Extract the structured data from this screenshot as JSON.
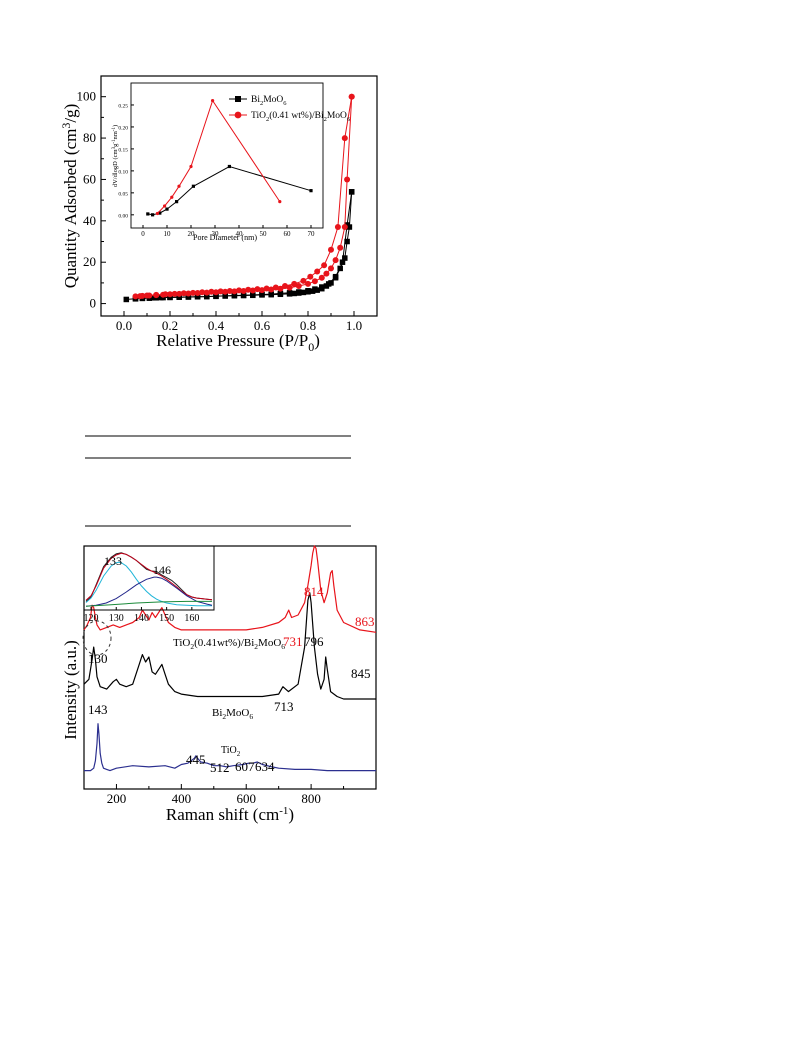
{
  "chart_data": [
    {
      "type": "scatter",
      "xlabel": "Relative Pressure (P/P",
      "xlabel_sub": "0",
      "xlabel_end": ")",
      "ylabel": "Quantity Adsorbed (cm",
      "ylabel_sup": "3",
      "ylabel_end": "/g)",
      "xlim": [
        -0.1,
        1.1
      ],
      "ylim": [
        -6,
        110
      ],
      "xticks": [
        "0.0",
        "0.2",
        "0.4",
        "0.6",
        "0.8",
        "1.0"
      ],
      "yticks": [
        "0",
        "20",
        "40",
        "60",
        "80",
        "100"
      ],
      "grid": false,
      "series": [
        {
          "name": "Bi2MoO6",
          "color": "#000000",
          "marker": "square",
          "adsorption": {
            "x": [
              0.01,
              0.05,
              0.08,
              0.11,
              0.14,
              0.17,
              0.2,
              0.24,
              0.28,
              0.32,
              0.36,
              0.4,
              0.44,
              0.48,
              0.52,
              0.56,
              0.6,
              0.64,
              0.68,
              0.72,
              0.74,
              0.76,
              0.78,
              0.8,
              0.82,
              0.84,
              0.86,
              0.88,
              0.9,
              0.92,
              0.94,
              0.96,
              0.97,
              0.98,
              0.99
            ],
            "y": [
              2,
              2.3,
              2.5,
              2.6,
              2.8,
              2.9,
              3,
              3.1,
              3.2,
              3.3,
              3.4,
              3.6,
              3.7,
              3.8,
              3.9,
              4,
              4.2,
              4.3,
              4.5,
              4.7,
              4.9,
              5.1,
              5.4,
              5.7,
              6,
              6.5,
              7.2,
              8.5,
              10,
              12.5,
              17,
              22,
              30,
              37,
              54
            ]
          },
          "desorption": {
            "x": [
              0.99,
              0.97,
              0.95,
              0.92,
              0.89,
              0.86,
              0.83,
              0.8,
              0.76,
              0.72,
              0.68,
              0.64,
              0.6,
              0.56,
              0.52,
              0.48,
              0.44,
              0.4,
              0.36,
              0.32,
              0.28,
              0.24,
              0.2,
              0.16,
              0.12,
              0.08,
              0.05
            ],
            "y": [
              54,
              38,
              20,
              13,
              9.5,
              8,
              7,
              6.2,
              5.6,
              5.2,
              4.9,
              4.6,
              4.4,
              4.2,
              4,
              3.9,
              3.7,
              3.5,
              3.4,
              3.3,
              3.2,
              3.1,
              3,
              2.9,
              2.8,
              2.6,
              2.4
            ]
          }
        },
        {
          "name": "TiO2(0.41 wt%)/Bi2MoO6",
          "color": "#e8141b",
          "marker": "circle",
          "adsorption": {
            "x": [
              0.05,
              0.08,
              0.11,
              0.14,
              0.17,
              0.2,
              0.24,
              0.28,
              0.32,
              0.36,
              0.4,
              0.44,
              0.48,
              0.52,
              0.56,
              0.6,
              0.64,
              0.68,
              0.72,
              0.76,
              0.8,
              0.83,
              0.86,
              0.88,
              0.9,
              0.92,
              0.94,
              0.96,
              0.97,
              0.99
            ],
            "y": [
              3.5,
              3.7,
              3.9,
              4.1,
              4.3,
              4.5,
              4.7,
              4.9,
              5.1,
              5.3,
              5.5,
              5.7,
              5.9,
              6.1,
              6.3,
              6.5,
              6.8,
              7.2,
              7.7,
              8.5,
              9.5,
              10.8,
              12.5,
              14.5,
              17,
              21,
              27,
              37,
              60,
              100
            ]
          },
          "desorption": {
            "x": [
              0.99,
              0.96,
              0.93,
              0.9,
              0.87,
              0.84,
              0.81,
              0.78,
              0.74,
              0.7,
              0.66,
              0.62,
              0.58,
              0.54,
              0.5,
              0.46,
              0.42,
              0.38,
              0.34,
              0.3,
              0.26,
              0.22,
              0.18,
              0.14,
              0.1,
              0.07
            ],
            "y": [
              100,
              80,
              37,
              26,
              18.5,
              15.5,
              13,
              11,
              9.5,
              8.5,
              7.8,
              7.3,
              7,
              6.7,
              6.4,
              6.1,
              5.9,
              5.7,
              5.5,
              5.2,
              5,
              4.7,
              4.5,
              4.2,
              3.9,
              3.6
            ]
          }
        }
      ],
      "inset": {
        "type": "line",
        "xlabel": "Pore Diameter (nm)",
        "ylabel": "dV/dlogD (cm",
        "ylabel_sup1": "3",
        "ylabel_mid": "g",
        "ylabel_sup2": "-1",
        "ylabel_mid2": "nm",
        "ylabel_sup3": "-1",
        "ylabel_end": ")",
        "xlim": [
          -5,
          75
        ],
        "ylim": [
          -0.03,
          0.3
        ],
        "xticks": [
          "0",
          "10",
          "20",
          "30",
          "40",
          "50",
          "60",
          "70"
        ],
        "yticks": [
          "0.00",
          "0.05",
          "0.10",
          "0.15",
          "0.20",
          "0.25"
        ],
        "series": [
          {
            "name": "Bi",
            "name_sub": "2",
            "name_mid": "MoO",
            "name_sub2": "6",
            "color": "#000000",
            "marker": "square",
            "x": [
              2,
              4,
              7,
              10,
              14,
              21,
              36,
              70
            ],
            "y": [
              0.002,
              0,
              0.004,
              0.013,
              0.03,
              0.065,
              0.11,
              0.055
            ]
          },
          {
            "name": "TiO",
            "name_sub": "2",
            "name_mid": "(0.41 wt%)/Bi",
            "name_sub2": "2",
            "name_end": "MoO",
            "name_sub3": "6",
            "color": "#e8141b",
            "marker": "circle",
            "x": [
              6,
              9,
              12,
              15,
              20,
              29,
              57
            ],
            "y": [
              0.003,
              0.02,
              0.04,
              0.065,
              0.11,
              0.26,
              0.03
            ]
          }
        ]
      }
    },
    {
      "type": "line",
      "xlabel": "Raman shift (cm",
      "xlabel_sup": "-1",
      "xlabel_end": ")",
      "ylabel": "Intensity (a.u.)",
      "xlim": [
        100,
        1000
      ],
      "xticks": [
        "200",
        "400",
        "600",
        "800"
      ],
      "xtick_values": [
        200,
        400,
        600,
        800
      ],
      "grid": false,
      "series": [
        {
          "name": "TiO2(0.41wt%)/Bi2MoO6",
          "color": "#e8141b",
          "x": [
            100,
            110,
            120,
            125,
            130,
            135,
            140,
            150,
            170,
            190,
            210,
            230,
            250,
            270,
            280,
            290,
            300,
            310,
            320,
            340,
            350,
            360,
            380,
            400,
            420,
            450,
            500,
            550,
            600,
            650,
            700,
            720,
            731,
            740,
            760,
            780,
            790,
            800,
            805,
            810,
            815,
            820,
            830,
            840,
            850,
            860,
            865,
            870,
            880,
            900,
            950,
            1000
          ],
          "y": [
            0.62,
            0.64,
            0.67,
            0.72,
            0.71,
            0.67,
            0.64,
            0.62,
            0.63,
            0.64,
            0.63,
            0.64,
            0.65,
            0.67,
            0.7,
            0.68,
            0.66,
            0.69,
            0.67,
            0.71,
            0.68,
            0.65,
            0.63,
            0.62,
            0.62,
            0.62,
            0.62,
            0.62,
            0.62,
            0.63,
            0.65,
            0.67,
            0.7,
            0.67,
            0.68,
            0.73,
            0.8,
            0.88,
            0.93,
            0.96,
            0.95,
            0.9,
            0.78,
            0.73,
            0.77,
            0.85,
            0.86,
            0.8,
            0.7,
            0.65,
            0.62,
            0.61
          ]
        },
        {
          "name": "Bi2MoO6",
          "color": "#000000",
          "x": [
            100,
            115,
            125,
            130,
            135,
            140,
            150,
            170,
            190,
            200,
            210,
            230,
            250,
            270,
            280,
            290,
            300,
            310,
            320,
            340,
            350,
            360,
            380,
            400,
            450,
            500,
            550,
            600,
            650,
            700,
            713,
            730,
            760,
            780,
            790,
            796,
            800,
            810,
            820,
            830,
            840,
            845,
            850,
            860,
            880,
            900,
            950,
            1000
          ],
          "y": [
            0.4,
            0.42,
            0.5,
            0.55,
            0.5,
            0.43,
            0.39,
            0.38,
            0.41,
            0.42,
            0.4,
            0.39,
            0.4,
            0.48,
            0.52,
            0.49,
            0.51,
            0.45,
            0.44,
            0.48,
            0.44,
            0.4,
            0.37,
            0.36,
            0.35,
            0.35,
            0.35,
            0.35,
            0.35,
            0.36,
            0.39,
            0.37,
            0.4,
            0.55,
            0.74,
            0.77,
            0.73,
            0.55,
            0.44,
            0.38,
            0.42,
            0.51,
            0.46,
            0.37,
            0.35,
            0.34,
            0.34,
            0.34
          ]
        },
        {
          "name": "TiO2",
          "color": "#2b2f8f",
          "x": [
            100,
            120,
            130,
            135,
            140,
            143,
            146,
            150,
            155,
            160,
            170,
            180,
            200,
            250,
            300,
            350,
            380,
            400,
            420,
            440,
            445,
            450,
            460,
            480,
            500,
            512,
            520,
            540,
            560,
            590,
            607,
            620,
            634,
            650,
            680,
            700,
            750,
            800,
            850,
            900,
            1000
          ],
          "y": [
            0.05,
            0.05,
            0.06,
            0.09,
            0.16,
            0.24,
            0.2,
            0.12,
            0.08,
            0.06,
            0.055,
            0.05,
            0.06,
            0.07,
            0.065,
            0.07,
            0.06,
            0.075,
            0.08,
            0.1,
            0.11,
            0.1,
            0.085,
            0.08,
            0.07,
            0.07,
            0.07,
            0.065,
            0.07,
            0.075,
            0.08,
            0.08,
            0.085,
            0.075,
            0.065,
            0.06,
            0.055,
            0.055,
            0.05,
            0.05,
            0.05
          ]
        }
      ],
      "series_labels": {
        "composite_a": "TiO",
        "composite_sub_a": "2",
        "composite_b": "(0.41wt%)/Bi",
        "composite_sub_b": "2",
        "composite_c": "MoO",
        "composite_sub_c": "6",
        "bmo_a": "Bi",
        "bmo_sub_a": "2",
        "bmo_b": "MoO",
        "bmo_sub_b": "6",
        "tio2_a": "TiO",
        "tio2_sub": "2"
      },
      "peak_labels": {
        "r814": "814",
        "r863": "863",
        "r731": "731",
        "r796": "796",
        "b130": "130",
        "b845": "845",
        "b713": "713",
        "t143": "143",
        "t445": "445",
        "t512": "512",
        "t607": "607",
        "t634": "634"
      },
      "inset": {
        "type": "line",
        "xlim": [
          118,
          168
        ],
        "xticks": [
          "120",
          "130",
          "140",
          "150",
          "160"
        ],
        "xtick_values": [
          120,
          130,
          140,
          150,
          160
        ],
        "peak_labels": {
          "p133": "133",
          "p146": "146"
        },
        "series": [
          {
            "name": "raw",
            "color": "#222222",
            "x": [
              118,
              120,
              122,
              125,
              128,
              130,
              132,
              134,
              136,
              138,
              140,
              142,
              144,
              146,
              148,
              150,
              152,
              154,
              156,
              158,
              160,
              162,
              164,
              166,
              168
            ],
            "y": [
              0.12,
              0.2,
              0.42,
              0.75,
              0.92,
              0.98,
              1.0,
              0.97,
              0.92,
              0.86,
              0.78,
              0.7,
              0.67,
              0.66,
              0.6,
              0.55,
              0.5,
              0.42,
              0.33,
              0.24,
              0.2,
              0.18,
              0.17,
              0.16,
              0.15
            ]
          },
          {
            "name": "cumulative",
            "color": "#c0001a",
            "x": [
              118,
              120,
              122,
              125,
              128,
              130,
              132,
              134,
              136,
              138,
              140,
              142,
              144,
              146,
              148,
              150,
              152,
              154,
              156,
              158,
              160,
              162,
              164,
              166,
              168
            ],
            "y": [
              0.14,
              0.22,
              0.4,
              0.72,
              0.9,
              0.96,
              0.99,
              0.97,
              0.92,
              0.86,
              0.79,
              0.72,
              0.67,
              0.63,
              0.58,
              0.52,
              0.45,
              0.38,
              0.3,
              0.24,
              0.2,
              0.18,
              0.17,
              0.16,
              0.15
            ]
          },
          {
            "name": "peak1",
            "color": "#1fb5d8",
            "x": [
              118,
              120,
              122,
              125,
              128,
              130,
              131,
              132,
              134,
              136,
              138,
              140,
              142,
              144,
              146,
              148,
              150,
              154,
              158,
              162,
              168
            ],
            "y": [
              0.1,
              0.18,
              0.32,
              0.58,
              0.76,
              0.82,
              0.83,
              0.82,
              0.76,
              0.65,
              0.52,
              0.4,
              0.3,
              0.22,
              0.16,
              0.12,
              0.09,
              0.06,
              0.05,
              0.04,
              0.04
            ]
          },
          {
            "name": "peak2",
            "color": "#22268a",
            "x": [
              118,
              122,
              126,
              130,
              134,
              138,
              142,
              145,
              146,
              148,
              150,
              154,
              158,
              162,
              166,
              168
            ],
            "y": [
              0.03,
              0.05,
              0.09,
              0.17,
              0.29,
              0.42,
              0.52,
              0.56,
              0.56,
              0.54,
              0.49,
              0.36,
              0.22,
              0.12,
              0.07,
              0.05
            ]
          },
          {
            "name": "baseline",
            "color": "#1b8a3a",
            "x": [
              118,
              128,
              138,
              148,
              158,
              168
            ],
            "y": [
              0.03,
              0.06,
              0.09,
              0.11,
              0.12,
              0.12
            ]
          }
        ]
      }
    }
  ]
}
